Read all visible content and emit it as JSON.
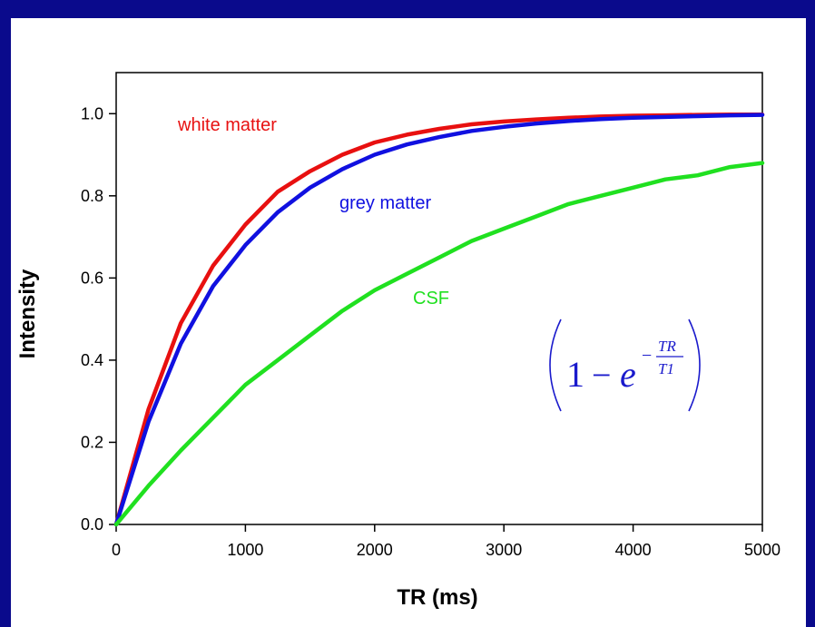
{
  "colors": {
    "background": "#0a0a8c",
    "white_matter": "#e81010",
    "grey_matter": "#1010e0",
    "csf": "#20e020",
    "formula": "#1a1acc"
  },
  "chart_data": {
    "type": "line",
    "title": "",
    "xlabel": "TR (ms)",
    "ylabel": "Intensity",
    "xlim": [
      0,
      5000
    ],
    "ylim": [
      0,
      1.1
    ],
    "xticks": [
      0,
      1000,
      2000,
      3000,
      4000,
      5000
    ],
    "xtick_labels": [
      "0",
      "1000",
      "2000",
      "3000",
      "4000",
      "5000"
    ],
    "yticks": [
      0,
      0.2,
      0.4,
      0.6,
      0.8,
      1.0
    ],
    "ytick_labels": [
      "0.0",
      "0.2",
      "0.4",
      "0.6",
      "0.8",
      "1.0"
    ],
    "grid": false,
    "formula": {
      "one": "1",
      "minus": "−",
      "base": "e",
      "exp_minus": "−",
      "exp_num": "TR",
      "exp_den": "T1"
    },
    "x": [
      0,
      250,
      500,
      750,
      1000,
      1250,
      1500,
      1750,
      2000,
      2250,
      2500,
      2750,
      3000,
      3250,
      3500,
      3750,
      4000,
      4250,
      4500,
      4750,
      5000
    ],
    "series": [
      {
        "name": "white matter",
        "color": "#e81010",
        "values": [
          0,
          0.28,
          0.49,
          0.63,
          0.73,
          0.81,
          0.86,
          0.9,
          0.93,
          0.949,
          0.963,
          0.974,
          0.981,
          0.986,
          0.99,
          0.993,
          0.995,
          0.996,
          0.997,
          0.998,
          0.998
        ]
      },
      {
        "name": "grey matter",
        "color": "#1010e0",
        "values": [
          0,
          0.25,
          0.44,
          0.58,
          0.68,
          0.76,
          0.82,
          0.865,
          0.9,
          0.925,
          0.943,
          0.958,
          0.968,
          0.976,
          0.982,
          0.987,
          0.99,
          0.992,
          0.994,
          0.996,
          0.997
        ]
      },
      {
        "name": "CSF",
        "color": "#20e020",
        "values": [
          0,
          0.094,
          0.18,
          0.26,
          0.34,
          0.4,
          0.46,
          0.52,
          0.57,
          0.61,
          0.65,
          0.69,
          0.72,
          0.75,
          0.78,
          0.8,
          0.82,
          0.84,
          0.85,
          0.87,
          0.88
        ]
      }
    ]
  }
}
